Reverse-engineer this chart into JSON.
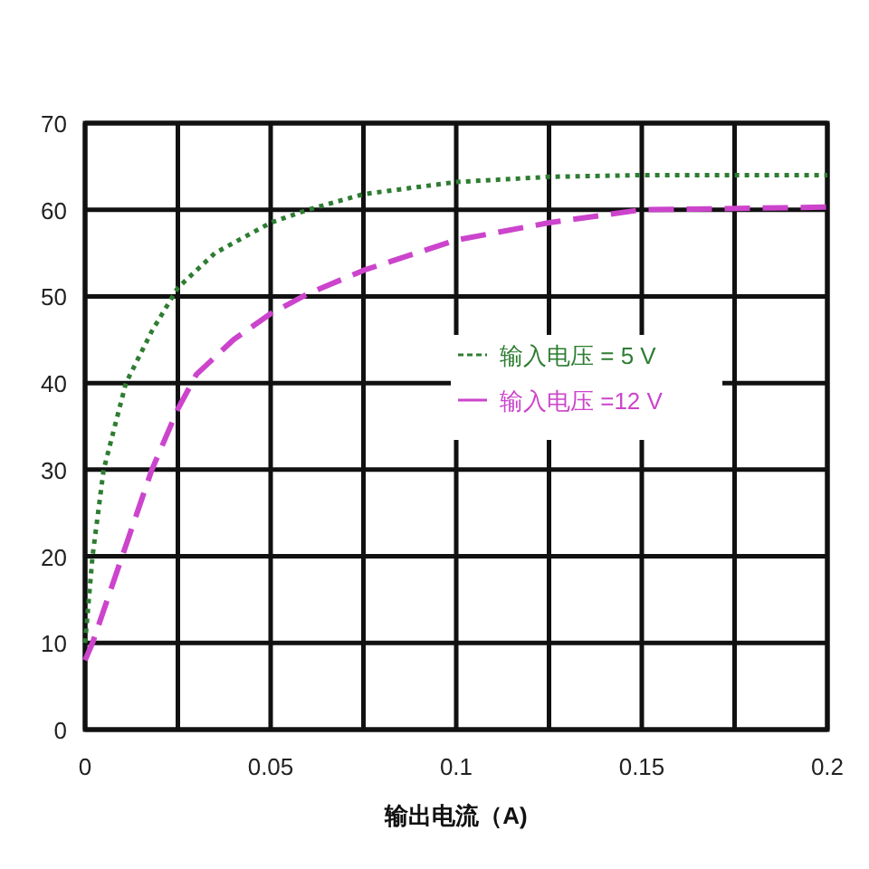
{
  "chart_data": {
    "type": "line",
    "xlabel": "输出电流（A)",
    "xlim": [
      0,
      0.2
    ],
    "ylim": [
      0,
      70
    ],
    "xticks": [
      0,
      {
        "value": 0.025,
        "label": null
      },
      0.05,
      {
        "value": 0.075,
        "label": null
      },
      0.1,
      {
        "value": 0.125,
        "label": null
      },
      0.15,
      {
        "value": 0.175,
        "label": null
      },
      0.2
    ],
    "yticks": [
      0,
      10,
      20,
      30,
      40,
      50,
      60,
      70
    ],
    "grid": true,
    "legend": "right",
    "marker": "none",
    "series": [
      {
        "name": "输入电压 = 5  V",
        "color": "#2e7d32",
        "line_style": "dotted",
        "x": [
          0,
          0.002,
          0.005,
          0.011,
          0.018,
          0.025,
          0.035,
          0.05,
          0.06,
          0.075,
          0.1,
          0.125,
          0.15,
          0.2
        ],
        "values": [
          10,
          20,
          30,
          40,
          46,
          51,
          55,
          58.5,
          60,
          61.8,
          63.2,
          63.8,
          64,
          64
        ]
      },
      {
        "name": "输入电压 =12 V",
        "color": "#cc44cc",
        "line_style": "dashed",
        "x": [
          0,
          0.002,
          0.01,
          0.018,
          0.025,
          0.03,
          0.04,
          0.05,
          0.06,
          0.075,
          0.1,
          0.125,
          0.15,
          0.2
        ],
        "values": [
          8,
          10,
          20,
          30,
          37,
          41,
          45,
          48,
          50.3,
          53,
          56.5,
          58.5,
          60,
          60.3
        ]
      }
    ]
  }
}
